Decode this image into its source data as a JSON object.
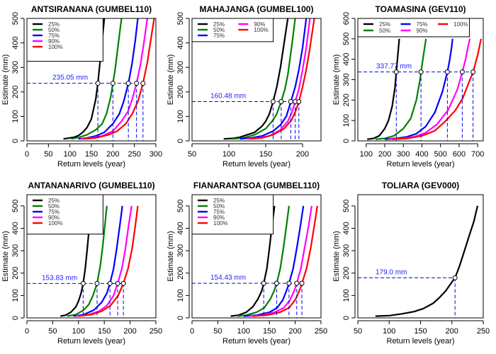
{
  "chart_data": [
    {
      "type": "line",
      "title": "ANTSIRANANA (GUMBEL110)",
      "xlabel": "Return levels (year)",
      "ylabel": "Estimate (mm)",
      "xlim": [
        0,
        300
      ],
      "ylim": [
        0,
        500
      ],
      "xticks": [
        0,
        50,
        100,
        150,
        200,
        250,
        300
      ],
      "yticks": [
        0,
        100,
        200,
        300,
        400,
        500
      ],
      "legend": {
        "position": "top-left",
        "columns": 1
      },
      "threshold": {
        "value": 235.05,
        "label": "235.05 mm",
        "x_crossings": [
          165,
          200,
          236,
          255,
          270
        ]
      },
      "series": [
        {
          "name": "25%",
          "color": "#000000",
          "x": [
            85,
            100,
            110,
            120,
            130,
            140,
            150,
            160,
            165,
            170,
            175,
            180
          ],
          "y": [
            8,
            12,
            15,
            22,
            35,
            55,
            90,
            170,
            235,
            320,
            410,
            500
          ]
        },
        {
          "name": "50%",
          "color": "#008000",
          "x": [
            103,
            120,
            140,
            160,
            175,
            185,
            195,
            200,
            205,
            210,
            215,
            220
          ],
          "y": [
            8,
            14,
            25,
            45,
            70,
            110,
            180,
            235,
            290,
            360,
            430,
            500
          ]
        },
        {
          "name": "75%",
          "color": "#0000ff",
          "x": [
            120,
            140,
            160,
            180,
            200,
            215,
            225,
            236,
            245,
            252,
            258
          ],
          "y": [
            8,
            12,
            20,
            35,
            70,
            110,
            160,
            235,
            320,
            410,
            500
          ]
        },
        {
          "name": "90%",
          "color": "#ff00ff",
          "x": [
            125,
            150,
            175,
            200,
            220,
            235,
            245,
            255,
            265,
            273,
            280
          ],
          "y": [
            8,
            12,
            20,
            40,
            80,
            120,
            170,
            235,
            320,
            410,
            500
          ]
        },
        {
          "name": "100%",
          "color": "#ff0000",
          "x": [
            130,
            160,
            190,
            210,
            230,
            245,
            258,
            270,
            280,
            288,
            296
          ],
          "y": [
            8,
            12,
            25,
            40,
            70,
            110,
            160,
            235,
            320,
            410,
            500
          ]
        }
      ]
    },
    {
      "type": "line",
      "title": "MAHAJANGA (GUMBEL100)",
      "xlabel": "Return levels (year)",
      "ylabel": "Estimate (mm)",
      "xlim": [
        50,
        225
      ],
      "ylim": [
        0,
        500
      ],
      "xticks": [
        50,
        100,
        150,
        200
      ],
      "yticks": [
        0,
        100,
        200,
        300,
        400,
        500
      ],
      "legend": {
        "position": "top-left",
        "columns": 2
      },
      "threshold": {
        "value": 160.48,
        "label": "160.48 mm",
        "x_crossings": [
          160,
          171,
          184,
          190,
          195
        ]
      },
      "series": [
        {
          "name": "25%",
          "color": "#000000",
          "x": [
            93,
            105,
            115,
            125,
            135,
            145,
            150,
            155,
            160,
            165,
            170,
            175,
            180
          ],
          "y": [
            8,
            10,
            15,
            25,
            35,
            60,
            80,
            110,
            160,
            220,
            300,
            400,
            500
          ]
        },
        {
          "name": "50%",
          "color": "#008000",
          "x": [
            105,
            120,
            135,
            150,
            160,
            165,
            171,
            176,
            180,
            185,
            190
          ],
          "y": [
            8,
            12,
            25,
            50,
            85,
            110,
            160,
            210,
            270,
            380,
            500
          ]
        },
        {
          "name": "75%",
          "color": "#0000ff",
          "x": [
            115,
            130,
            145,
            160,
            170,
            178,
            184,
            190,
            195,
            200,
            205
          ],
          "y": [
            8,
            12,
            20,
            40,
            65,
            100,
            160,
            220,
            290,
            380,
            500
          ]
        },
        {
          "name": "90%",
          "color": "#ff00ff",
          "x": [
            125,
            140,
            155,
            170,
            180,
            186,
            190,
            195,
            200,
            205,
            210
          ],
          "y": [
            8,
            12,
            20,
            45,
            80,
            120,
            160,
            210,
            290,
            380,
            500
          ]
        },
        {
          "name": "100%",
          "color": "#ff0000",
          "x": [
            128,
            145,
            160,
            175,
            185,
            191,
            195,
            200,
            205,
            210,
            216
          ],
          "y": [
            8,
            12,
            25,
            50,
            85,
            125,
            160,
            220,
            290,
            380,
            500
          ]
        }
      ]
    },
    {
      "type": "line",
      "title": "TOAMASINA (GEV110)",
      "xlabel": "Return levels (year)",
      "ylabel": "Estimate (mm)",
      "xlim": [
        55,
        730
      ],
      "ylim": [
        0,
        600
      ],
      "xticks": [
        100,
        200,
        300,
        400,
        500,
        600,
        700
      ],
      "yticks": [
        0,
        100,
        200,
        300,
        400,
        500,
        600
      ],
      "legend": {
        "position": "top",
        "columns": 3
      },
      "threshold": {
        "value": 337.77,
        "label": "337.77 mm",
        "x_crossings": [
          262,
          395,
          537,
          617,
          675
        ]
      },
      "series": [
        {
          "name": "25%",
          "color": "#000000",
          "x": [
            105,
            140,
            170,
            200,
            220,
            240,
            255,
            262,
            268,
            273,
            278
          ],
          "y": [
            8,
            12,
            25,
            60,
            100,
            170,
            260,
            337,
            400,
            450,
            500
          ]
        },
        {
          "name": "50%",
          "color": "#008000",
          "x": [
            150,
            200,
            250,
            300,
            340,
            370,
            390,
            395,
            405,
            415,
            422
          ],
          "y": [
            8,
            12,
            25,
            60,
            110,
            200,
            300,
            337,
            400,
            460,
            500
          ]
        },
        {
          "name": "75%",
          "color": "#0000ff",
          "x": [
            200,
            260,
            320,
            370,
            420,
            470,
            510,
            537,
            550,
            560,
            565
          ],
          "y": [
            8,
            12,
            20,
            35,
            70,
            140,
            240,
            337,
            400,
            460,
            500
          ]
        },
        {
          "name": "90%",
          "color": "#ff00ff",
          "x": [
            220,
            290,
            360,
            420,
            480,
            540,
            590,
            617,
            635,
            648,
            658
          ],
          "y": [
            8,
            12,
            20,
            40,
            80,
            150,
            250,
            337,
            400,
            460,
            500
          ]
        },
        {
          "name": "100%",
          "color": "#ff0000",
          "x": [
            240,
            320,
            400,
            470,
            530,
            580,
            620,
            650,
            675,
            700,
            718
          ],
          "y": [
            8,
            12,
            25,
            50,
            100,
            150,
            210,
            280,
            337,
            420,
            500
          ]
        }
      ]
    },
    {
      "type": "line",
      "title": "ANTANANARIVO (GUMBEL110)",
      "xlabel": "Return levels (year)",
      "ylabel": "Estimate (mm)",
      "xlim": [
        0,
        250
      ],
      "ylim": [
        0,
        550
      ],
      "xticks": [
        0,
        50,
        100,
        150,
        200,
        250
      ],
      "yticks": [
        0,
        100,
        200,
        300,
        400,
        500
      ],
      "legend": {
        "position": "top-left",
        "columns": 1
      },
      "threshold": {
        "value": 153.83,
        "label": "153.83 mm",
        "x_crossings": [
          109,
          136,
          161,
          176,
          187
        ]
      },
      "series": [
        {
          "name": "25%",
          "color": "#000000",
          "x": [
            65,
            75,
            85,
            95,
            100,
            105,
            109,
            113,
            117,
            121,
            125
          ],
          "y": [
            8,
            12,
            25,
            50,
            75,
            110,
            154,
            220,
            310,
            410,
            500
          ]
        },
        {
          "name": "50%",
          "color": "#008000",
          "x": [
            78,
            95,
            110,
            120,
            128,
            136,
            142,
            147,
            151,
            155
          ],
          "y": [
            8,
            15,
            35,
            60,
            100,
            154,
            230,
            320,
            410,
            500
          ]
        },
        {
          "name": "75%",
          "color": "#0000ff",
          "x": [
            90,
            110,
            130,
            145,
            155,
            161,
            168,
            174,
            180,
            185
          ],
          "y": [
            8,
            15,
            35,
            70,
            110,
            154,
            220,
            310,
            410,
            500
          ]
        },
        {
          "name": "90%",
          "color": "#ff00ff",
          "x": [
            95,
            120,
            140,
            155,
            168,
            176,
            184,
            191,
            197,
            203
          ],
          "y": [
            8,
            15,
            30,
            55,
            100,
            154,
            220,
            310,
            410,
            500
          ]
        },
        {
          "name": "100%",
          "color": "#ff0000",
          "x": [
            100,
            125,
            145,
            162,
            177,
            187,
            196,
            204,
            210,
            215
          ],
          "y": [
            8,
            15,
            30,
            55,
            100,
            154,
            220,
            310,
            410,
            500
          ]
        }
      ]
    },
    {
      "type": "line",
      "title": "FIANARANTSOA (GUMBEL110)",
      "xlabel": "Return levels (year)",
      "ylabel": "Estimate (mm)",
      "xlim": [
        0,
        250
      ],
      "ylim": [
        0,
        550
      ],
      "xticks": [
        0,
        50,
        100,
        150,
        200,
        250
      ],
      "yticks": [
        0,
        100,
        200,
        300,
        400,
        500
      ],
      "legend": {
        "position": "top-left",
        "columns": 1
      },
      "threshold": {
        "value": 154.43,
        "label": "154.43 mm",
        "x_crossings": [
          139,
          164,
          188,
          203,
          213
        ]
      },
      "series": [
        {
          "name": "25%",
          "color": "#000000",
          "x": [
            75,
            90,
            105,
            118,
            128,
            135,
            139,
            145,
            150,
            155,
            160
          ],
          "y": [
            8,
            12,
            25,
            50,
            85,
            120,
            154,
            220,
            310,
            410,
            500
          ]
        },
        {
          "name": "50%",
          "color": "#008000",
          "x": [
            88,
            105,
            125,
            140,
            152,
            159,
            164,
            171,
            177,
            183,
            188
          ],
          "y": [
            8,
            12,
            25,
            45,
            85,
            120,
            154,
            220,
            310,
            410,
            500
          ]
        },
        {
          "name": "75%",
          "color": "#0000ff",
          "x": [
            100,
            125,
            150,
            165,
            176,
            183,
            188,
            196,
            203,
            210,
            216
          ],
          "y": [
            8,
            12,
            25,
            45,
            80,
            120,
            154,
            220,
            310,
            410,
            500
          ]
        },
        {
          "name": "90%",
          "color": "#ff00ff",
          "x": [
            110,
            135,
            160,
            178,
            190,
            198,
            203,
            211,
            218,
            226,
            232
          ],
          "y": [
            8,
            12,
            25,
            45,
            80,
            120,
            154,
            220,
            310,
            410,
            500
          ]
        },
        {
          "name": "100%",
          "color": "#ff0000",
          "x": [
            118,
            145,
            170,
            188,
            200,
            208,
            213,
            222,
            230,
            237,
            243
          ],
          "y": [
            8,
            12,
            25,
            45,
            80,
            120,
            154,
            220,
            310,
            410,
            500
          ]
        }
      ]
    },
    {
      "type": "line",
      "title": "TOLIARA (GEV000)",
      "xlabel": "Return levels (year)",
      "ylabel": "Estimate (mm)",
      "xlim": [
        50,
        250
      ],
      "ylim": [
        0,
        550
      ],
      "xticks": [
        50,
        100,
        150,
        200,
        250
      ],
      "yticks": [
        0,
        100,
        200,
        300,
        400,
        500
      ],
      "legend": null,
      "threshold": {
        "value": 179.0,
        "label": "179.0 mm",
        "x_crossings": [
          205
        ]
      },
      "series": [
        {
          "name": "",
          "color": "#000000",
          "x": [
            78,
            100,
            120,
            140,
            155,
            170,
            180,
            190,
            200,
            205,
            212,
            220,
            228,
            235,
            241
          ],
          "y": [
            8,
            10,
            18,
            28,
            42,
            65,
            90,
            120,
            160,
            179,
            230,
            300,
            370,
            430,
            500
          ]
        }
      ]
    }
  ]
}
